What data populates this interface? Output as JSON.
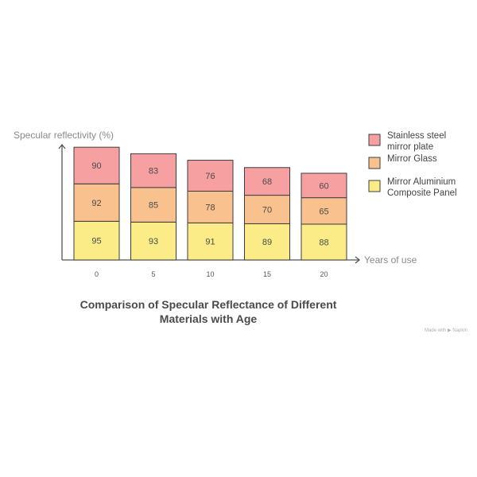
{
  "chart_data": {
    "type": "bar",
    "stacked": true,
    "title": "Comparison of Specular Reflectance of Different Materials with Age",
    "xlabel": "Years of use",
    "ylabel": "Specular reflectivity (%)",
    "categories": [
      "0",
      "5",
      "10",
      "15",
      "20"
    ],
    "series": [
      {
        "name": "Mirror Aluminium Composite Panel",
        "values": [
          95,
          93,
          91,
          89,
          88
        ],
        "color": "#fbec87"
      },
      {
        "name": "Mirror Glass",
        "values": [
          92,
          85,
          78,
          70,
          65
        ],
        "color": "#f8c18d"
      },
      {
        "name": "Stainless steel mirror plate",
        "values": [
          90,
          83,
          76,
          68,
          60
        ],
        "color": "#f6a0a2"
      }
    ],
    "legend": {
      "placement": "right",
      "order": [
        2,
        1,
        0
      ],
      "items": [
        [
          "Stainless steel",
          "mirror plate"
        ],
        [
          "Mirror Glass"
        ],
        [
          "Mirror Aluminium",
          "Composite Panel"
        ]
      ]
    },
    "grid": false,
    "axis_color": "#555555",
    "bar_border_color": "#3d3d3d"
  },
  "title_lines": [
    "Comparison of Specular Reflectance of Different",
    "Materials with Age"
  ],
  "credit": "Made with ▶ Napkin"
}
